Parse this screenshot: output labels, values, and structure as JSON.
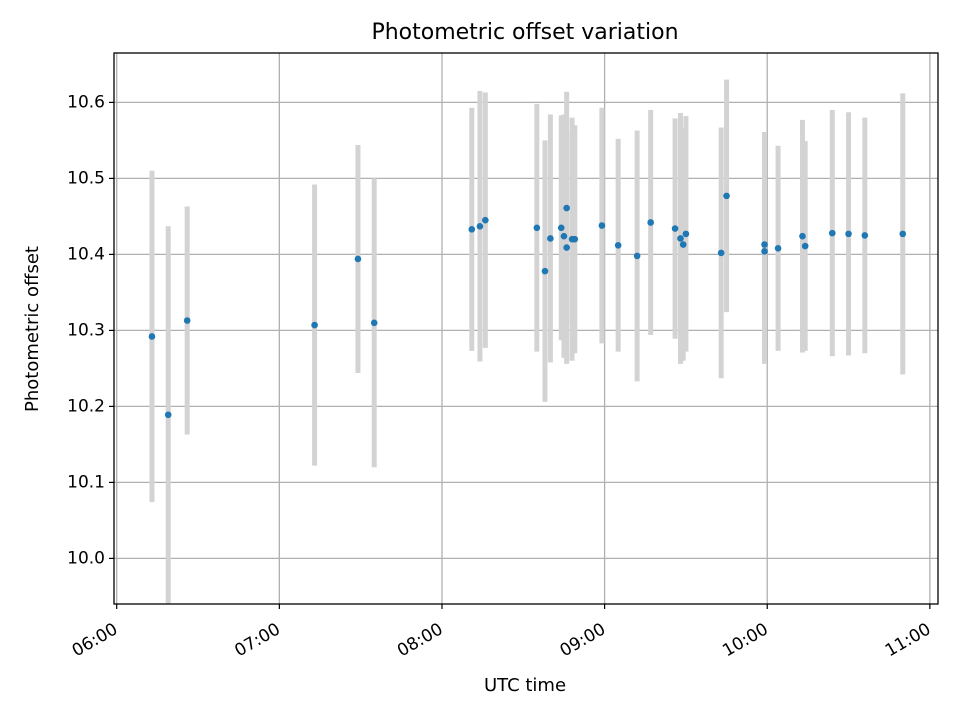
{
  "chart_data": {
    "type": "scatter",
    "title": "Photometric offset variation",
    "xlabel": "UTC time",
    "ylabel": "Photometric offset",
    "x_ticks": [
      "06:00",
      "07:00",
      "08:00",
      "09:00",
      "10:00",
      "11:00"
    ],
    "y_ticks": [
      "10.0",
      "10.1",
      "10.2",
      "10.3",
      "10.4",
      "10.5",
      "10.6"
    ],
    "xlim": [
      "05:59",
      "11:03"
    ],
    "ylim": [
      9.94,
      10.665
    ],
    "grid": true,
    "colors": {
      "point": "#1f77b4",
      "errorbar": "#d3d3d3",
      "grid": "#b0b0b0"
    },
    "series": [
      {
        "points": [
          {
            "x": "06:13",
            "y": 10.292,
            "err": 0.218
          },
          {
            "x": "06:19",
            "y": 10.189,
            "err": 0.248
          },
          {
            "x": "06:26",
            "y": 10.313,
            "err": 0.15
          },
          {
            "x": "07:13",
            "y": 10.307,
            "err": 0.185
          },
          {
            "x": "07:29",
            "y": 10.394,
            "err": 0.15
          },
          {
            "x": "07:35",
            "y": 10.31,
            "err": 0.19
          },
          {
            "x": "08:11",
            "y": 10.433,
            "err": 0.16
          },
          {
            "x": "08:14",
            "y": 10.437,
            "err": 0.178
          },
          {
            "x": "08:16",
            "y": 10.445,
            "err": 0.168
          },
          {
            "x": "08:35",
            "y": 10.435,
            "err": 0.163
          },
          {
            "x": "08:38",
            "y": 10.378,
            "err": 0.172
          },
          {
            "x": "08:40",
            "y": 10.421,
            "err": 0.163
          },
          {
            "x": "08:44",
            "y": 10.435,
            "err": 0.148
          },
          {
            "x": "08:45",
            "y": 10.424,
            "err": 0.16
          },
          {
            "x": "08:46",
            "y": 10.409,
            "err": 0.153
          },
          {
            "x": "08:46",
            "y": 10.461,
            "err": 0.153
          },
          {
            "x": "08:48",
            "y": 10.42,
            "err": 0.16
          },
          {
            "x": "08:49",
            "y": 10.42,
            "err": 0.15
          },
          {
            "x": "08:59",
            "y": 10.438,
            "err": 0.155
          },
          {
            "x": "09:05",
            "y": 10.412,
            "err": 0.14
          },
          {
            "x": "09:12",
            "y": 10.398,
            "err": 0.165
          },
          {
            "x": "09:17",
            "y": 10.442,
            "err": 0.148
          },
          {
            "x": "09:26",
            "y": 10.434,
            "err": 0.145
          },
          {
            "x": "09:28",
            "y": 10.421,
            "err": 0.165
          },
          {
            "x": "09:29",
            "y": 10.413,
            "err": 0.153
          },
          {
            "x": "09:30",
            "y": 10.427,
            "err": 0.155
          },
          {
            "x": "09:43",
            "y": 10.402,
            "err": 0.165
          },
          {
            "x": "09:45",
            "y": 10.477,
            "err": 0.153
          },
          {
            "x": "09:59",
            "y": 10.413,
            "err": 0.148
          },
          {
            "x": "09:59",
            "y": 10.404,
            "err": 0.148
          },
          {
            "x": "10:04",
            "y": 10.408,
            "err": 0.135
          },
          {
            "x": "10:13",
            "y": 10.424,
            "err": 0.153
          },
          {
            "x": "10:14",
            "y": 10.411,
            "err": 0.138
          },
          {
            "x": "10:24",
            "y": 10.428,
            "err": 0.162
          },
          {
            "x": "10:30",
            "y": 10.427,
            "err": 0.16
          },
          {
            "x": "10:36",
            "y": 10.425,
            "err": 0.155
          },
          {
            "x": "10:50",
            "y": 10.427,
            "err": 0.185
          }
        ]
      }
    ]
  }
}
